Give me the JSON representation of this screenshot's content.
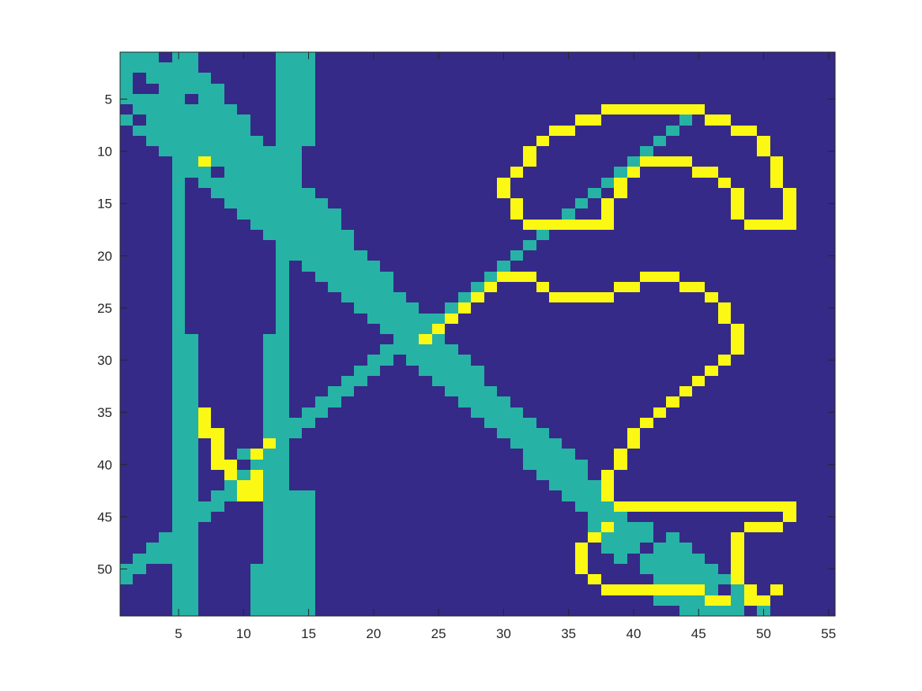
{
  "chart_data": {
    "type": "heatmap",
    "title": "",
    "xlabel": "",
    "ylabel": "",
    "xlim": [
      0.5,
      55.5
    ],
    "ylim": [
      0.5,
      54.5
    ],
    "y_direction": "reversed",
    "grid": false,
    "xticks": [
      5,
      10,
      15,
      20,
      25,
      30,
      35,
      40,
      45,
      50,
      55
    ],
    "yticks": [
      5,
      10,
      15,
      20,
      25,
      30,
      35,
      40,
      45,
      50
    ],
    "colors": {
      "0": "#352a87",
      "1": "#26b3a5",
      "2": "#fbf914"
    },
    "background_value": 0,
    "cells": {
      "1": [
        [
          1,
          1,
          3
        ],
        [
          1,
          5,
          6
        ],
        [
          1,
          13,
          15
        ],
        [
          2,
          1,
          6
        ],
        [
          2,
          13,
          15
        ],
        [
          3,
          1,
          1
        ],
        [
          3,
          3,
          7
        ],
        [
          3,
          13,
          15
        ],
        [
          4,
          1,
          1
        ],
        [
          4,
          4,
          8
        ],
        [
          4,
          13,
          15
        ],
        [
          5,
          1,
          5
        ],
        [
          5,
          7,
          8
        ],
        [
          5,
          13,
          15
        ],
        [
          6,
          2,
          9
        ],
        [
          6,
          13,
          15
        ],
        [
          7,
          1,
          1
        ],
        [
          7,
          3,
          10
        ],
        [
          7,
          13,
          15
        ],
        [
          8,
          2,
          10
        ],
        [
          8,
          13,
          15
        ],
        [
          9,
          3,
          11
        ],
        [
          9,
          13,
          15
        ],
        [
          10,
          4,
          11
        ],
        [
          10,
          12,
          14
        ],
        [
          11,
          5,
          6
        ],
        [
          11,
          8,
          14
        ],
        [
          12,
          5,
          7
        ],
        [
          12,
          9,
          14
        ],
        [
          13,
          5,
          5
        ],
        [
          13,
          7,
          14
        ],
        [
          14,
          5,
          5
        ],
        [
          14,
          8,
          15
        ],
        [
          15,
          5,
          5
        ],
        [
          15,
          9,
          16
        ],
        [
          16,
          5,
          5
        ],
        [
          16,
          10,
          17
        ],
        [
          17,
          5,
          5
        ],
        [
          17,
          11,
          17
        ],
        [
          18,
          5,
          5
        ],
        [
          18,
          12,
          18
        ],
        [
          19,
          5,
          5
        ],
        [
          19,
          13,
          18
        ],
        [
          20,
          5,
          5
        ],
        [
          20,
          13,
          19
        ],
        [
          21,
          5,
          5
        ],
        [
          21,
          13,
          13
        ],
        [
          21,
          15,
          20
        ],
        [
          22,
          5,
          5
        ],
        [
          22,
          13,
          13
        ],
        [
          22,
          16,
          21
        ],
        [
          23,
          5,
          5
        ],
        [
          23,
          13,
          13
        ],
        [
          23,
          17,
          21
        ],
        [
          24,
          5,
          5
        ],
        [
          24,
          13,
          13
        ],
        [
          24,
          18,
          22
        ],
        [
          25,
          5,
          5
        ],
        [
          25,
          13,
          13
        ],
        [
          25,
          19,
          23
        ],
        [
          26,
          5,
          5
        ],
        [
          26,
          13,
          13
        ],
        [
          26,
          20,
          24
        ],
        [
          27,
          5,
          5
        ],
        [
          27,
          13,
          13
        ],
        [
          27,
          21,
          25
        ],
        [
          28,
          5,
          6
        ],
        [
          28,
          12,
          13
        ],
        [
          28,
          22,
          25
        ],
        [
          29,
          5,
          6
        ],
        [
          29,
          12,
          13
        ],
        [
          29,
          21,
          26
        ],
        [
          30,
          5,
          6
        ],
        [
          30,
          12,
          13
        ],
        [
          30,
          20,
          20
        ],
        [
          30,
          23,
          27
        ],
        [
          31,
          5,
          6
        ],
        [
          31,
          12,
          13
        ],
        [
          31,
          19,
          19
        ],
        [
          31,
          24,
          28
        ],
        [
          32,
          5,
          6
        ],
        [
          32,
          12,
          13
        ],
        [
          32,
          18,
          18
        ],
        [
          32,
          25,
          28
        ],
        [
          33,
          5,
          6
        ],
        [
          33,
          12,
          13
        ],
        [
          33,
          17,
          17
        ],
        [
          33,
          26,
          29
        ],
        [
          34,
          5,
          6
        ],
        [
          34,
          12,
          13
        ],
        [
          34,
          16,
          16
        ],
        [
          34,
          27,
          30
        ],
        [
          35,
          5,
          6
        ],
        [
          35,
          12,
          13
        ],
        [
          35,
          15,
          15
        ],
        [
          35,
          28,
          31
        ],
        [
          36,
          5,
          6
        ],
        [
          36,
          12,
          14
        ],
        [
          36,
          29,
          32
        ],
        [
          37,
          5,
          6
        ],
        [
          37,
          12,
          13
        ],
        [
          37,
          30,
          33
        ],
        [
          38,
          5,
          6
        ],
        [
          38,
          12,
          13
        ],
        [
          38,
          31,
          34
        ],
        [
          39,
          5,
          6
        ],
        [
          39,
          10,
          10
        ],
        [
          39,
          12,
          13
        ],
        [
          39,
          32,
          35
        ],
        [
          40,
          5,
          6
        ],
        [
          40,
          12,
          13
        ],
        [
          40,
          32,
          36
        ],
        [
          41,
          5,
          6
        ],
        [
          41,
          10,
          10
        ],
        [
          41,
          12,
          13
        ],
        [
          41,
          33,
          36
        ],
        [
          42,
          5,
          6
        ],
        [
          42,
          9,
          9
        ],
        [
          42,
          12,
          13
        ],
        [
          42,
          34,
          37
        ],
        [
          43,
          5,
          6
        ],
        [
          43,
          9,
          9
        ],
        [
          43,
          12,
          15
        ],
        [
          43,
          35,
          38
        ],
        [
          44,
          5,
          6
        ],
        [
          44,
          8,
          8
        ],
        [
          44,
          12,
          15
        ],
        [
          44,
          36,
          38
        ],
        [
          45,
          5,
          6
        ],
        [
          45,
          7,
          7
        ],
        [
          45,
          12,
          15
        ],
        [
          45,
          37,
          39
        ],
        [
          46,
          5,
          6
        ],
        [
          46,
          12,
          15
        ],
        [
          46,
          37,
          41
        ],
        [
          47,
          5,
          6
        ],
        [
          47,
          12,
          15
        ],
        [
          47,
          38,
          41
        ],
        [
          47,
          43,
          43
        ],
        [
          48,
          4,
          6
        ],
        [
          48,
          12,
          15
        ],
        [
          48,
          38,
          40
        ],
        [
          48,
          42,
          44
        ],
        [
          49,
          3,
          6
        ],
        [
          49,
          12,
          15
        ],
        [
          49,
          39,
          39
        ],
        [
          49,
          41,
          45
        ],
        [
          50,
          2,
          2
        ],
        [
          50,
          5,
          6
        ],
        [
          50,
          11,
          15
        ],
        [
          50,
          41,
          46
        ],
        [
          51,
          1,
          1
        ],
        [
          51,
          5,
          6
        ],
        [
          51,
          11,
          15
        ],
        [
          51,
          42,
          47
        ],
        [
          52,
          5,
          6
        ],
        [
          52,
          11,
          15
        ],
        [
          52,
          42,
          46
        ],
        [
          52,
          48,
          48
        ],
        [
          53,
          5,
          6
        ],
        [
          53,
          11,
          15
        ],
        [
          53,
          42,
          48
        ],
        [
          54,
          5,
          6
        ],
        [
          54,
          11,
          15
        ],
        [
          54,
          44,
          48
        ],
        [
          54,
          50,
          50
        ]
      ],
      "2": [
        [
          11,
          7,
          7
        ],
        [
          35,
          7,
          7
        ],
        [
          36,
          7,
          7
        ],
        [
          37,
          7,
          8
        ],
        [
          38,
          8,
          8
        ],
        [
          38,
          12,
          12
        ],
        [
          39,
          8,
          8
        ],
        [
          39,
          11,
          11
        ],
        [
          40,
          8,
          9
        ],
        [
          40,
          11,
          11
        ],
        [
          41,
          9,
          9
        ],
        [
          41,
          11,
          11
        ],
        [
          42,
          10,
          11
        ],
        [
          43,
          10,
          11
        ]
      ]
    },
    "strokes": {
      "1": [
        [
          [
            50,
            1
          ],
          [
            7,
            44
          ]
        ],
        [
          [
            23,
            28
          ],
          [
            12,
            39
          ]
        ],
        [
          [
            28,
            23
          ],
          [
            36,
            15
          ]
        ],
        [
          [
            44,
            8
          ],
          [
            50,
            2
          ]
        ]
      ],
      "2": [
        [
          [
            6,
            42
          ],
          [
            6,
            45
          ],
          [
            7,
            47
          ],
          [
            8,
            49
          ],
          [
            9,
            50
          ],
          [
            10,
            50
          ],
          [
            11,
            51
          ],
          [
            13,
            51
          ],
          [
            15,
            52
          ],
          [
            17,
            52
          ],
          [
            17,
            50
          ],
          [
            16,
            48
          ],
          [
            14,
            48
          ],
          [
            13,
            47
          ],
          [
            12,
            46
          ],
          [
            11,
            44
          ],
          [
            11,
            41
          ],
          [
            12,
            40
          ],
          [
            13,
            39
          ],
          [
            15,
            38
          ],
          [
            17,
            38
          ],
          [
            17,
            32
          ],
          [
            16,
            31
          ],
          [
            14,
            30
          ],
          [
            13,
            30
          ],
          [
            12,
            31
          ],
          [
            10,
            32
          ],
          [
            9,
            33
          ],
          [
            8,
            34
          ],
          [
            7,
            36
          ],
          [
            6,
            38
          ],
          [
            6,
            42
          ]
        ],
        [
          [
            22,
            30
          ],
          [
            22,
            32
          ],
          [
            23,
            33
          ],
          [
            24,
            35
          ],
          [
            24,
            38
          ],
          [
            23,
            39
          ],
          [
            22,
            41
          ],
          [
            22,
            43
          ],
          [
            23,
            45
          ],
          [
            24,
            46
          ],
          [
            26,
            47
          ],
          [
            27,
            48
          ],
          [
            29,
            48
          ],
          [
            30,
            47
          ],
          [
            31,
            46
          ],
          [
            32,
            45
          ],
          [
            33,
            44
          ],
          [
            34,
            43
          ],
          [
            35,
            42
          ],
          [
            36,
            41
          ],
          [
            37,
            40
          ],
          [
            38,
            40
          ],
          [
            39,
            39
          ],
          [
            41,
            38
          ],
          [
            43,
            38
          ]
        ],
        [
          [
            22,
            30
          ],
          [
            23,
            29
          ],
          [
            24,
            28
          ],
          [
            25,
            27
          ],
          [
            26,
            26
          ],
          [
            27,
            25
          ],
          [
            28,
            24
          ]
        ],
        [
          [
            44,
            39
          ],
          [
            44,
            52
          ],
          [
            45,
            52
          ],
          [
            46,
            51
          ],
          [
            46,
            49
          ],
          [
            47,
            48
          ],
          [
            49,
            48
          ],
          [
            50,
            48
          ],
          [
            51,
            48
          ],
          [
            52,
            49
          ],
          [
            53,
            49
          ],
          [
            53,
            50
          ],
          [
            52,
            51
          ]
        ],
        [
          [
            46,
            38
          ],
          [
            47,
            37
          ],
          [
            48,
            36
          ],
          [
            49,
            36
          ],
          [
            50,
            36
          ],
          [
            51,
            37
          ],
          [
            52,
            38
          ],
          [
            52,
            41
          ],
          [
            52,
            45
          ],
          [
            53,
            47
          ]
        ]
      ]
    }
  }
}
